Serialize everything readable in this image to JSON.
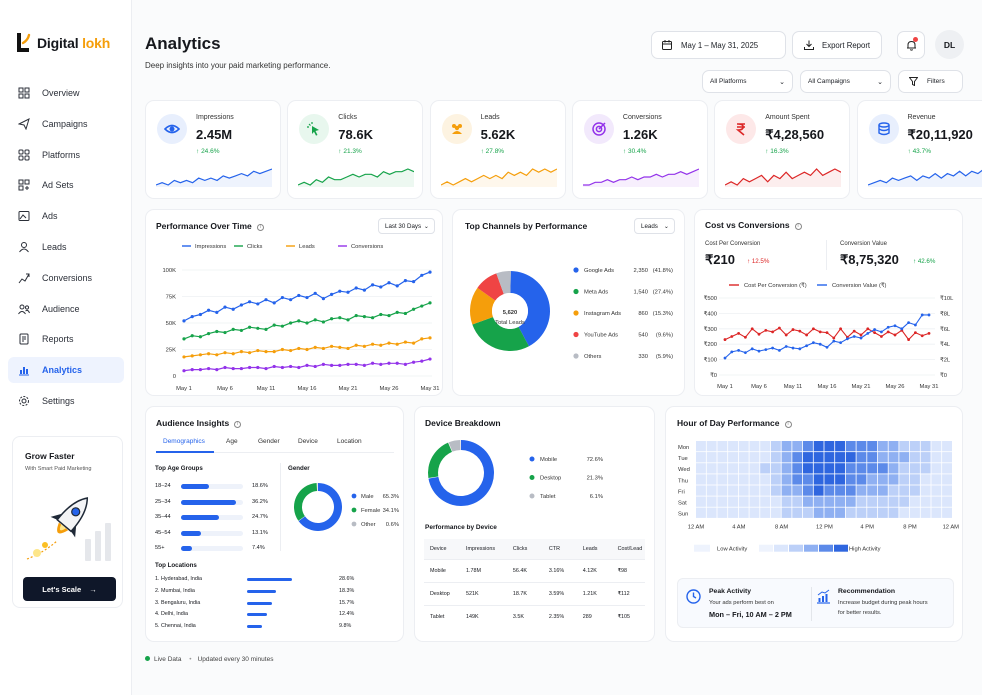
{
  "brand": {
    "name_a": "Digital ",
    "name_b": "lokh"
  },
  "nav": [
    "Overview",
    "Campaigns",
    "Platforms",
    "Ad Sets",
    "Ads",
    "Leads",
    "Conversions",
    "Audience",
    "Reports",
    "Analytics",
    "Settings"
  ],
  "nav_icons": [
    "overview-icon",
    "campaigns-icon",
    "platforms-icon",
    "ad-sets-icon",
    "ads-icon",
    "leads-icon",
    "conversions-icon",
    "audience-icon",
    "reports-icon",
    "analytics-icon",
    "settings-icon"
  ],
  "promo": {
    "title": "Grow Faster",
    "subtitle": "With Smart Paid Marketing",
    "button": "Let's Scale"
  },
  "header": {
    "title": "Analytics",
    "subtitle": "Deep insights into your paid marketing performance.",
    "date_range": "May 1 – May 31, 2025",
    "export": "Export Report",
    "avatar": "DL",
    "platforms": "All Platforms",
    "campaigns": "All Campaigns",
    "filters": "Filters"
  },
  "kpis": [
    {
      "label": "Impressions",
      "value": "2.45M",
      "change": "24.6%",
      "icon": "eye-icon",
      "color": "#2563eb",
      "bg": "#e8effd",
      "spark": [
        3,
        4,
        3,
        5,
        4,
        5,
        4,
        6,
        5,
        6,
        5,
        7,
        6,
        7,
        8,
        7,
        9,
        8,
        9,
        10
      ]
    },
    {
      "label": "Clicks",
      "value": "78.6K",
      "change": "21.3%",
      "icon": "cursor-click-icon",
      "color": "#16a34a",
      "bg": "#e8f7ee",
      "spark": [
        2,
        3,
        2,
        4,
        3,
        5,
        4,
        4,
        5,
        6,
        5,
        6,
        6,
        5,
        7,
        6,
        7,
        7,
        8,
        7
      ]
    },
    {
      "label": "Leads",
      "value": "5.62K",
      "change": "27.8%",
      "icon": "users-icon",
      "color": "#f59e0b",
      "bg": "#fdf3e1",
      "spark": [
        3,
        4,
        3,
        4,
        5,
        4,
        5,
        6,
        5,
        6,
        5,
        7,
        6,
        7,
        6,
        8,
        7,
        8,
        7,
        8
      ]
    },
    {
      "label": "Conversions",
      "value": "1.26K",
      "change": "30.4%",
      "icon": "target-icon",
      "color": "#9333ea",
      "bg": "#f2e9fc",
      "spark": [
        3,
        3,
        4,
        4,
        5,
        4,
        5,
        5,
        6,
        5,
        6,
        6,
        7,
        6,
        7,
        7,
        8,
        7,
        8,
        9
      ]
    },
    {
      "label": "Amount Spent",
      "value": "₹4,28,560",
      "change": "16.3%",
      "icon": "rupee-icon",
      "color": "#dc2626",
      "bg": "#fde8e8",
      "spark": [
        3,
        4,
        3,
        5,
        4,
        5,
        6,
        4,
        6,
        5,
        7,
        5,
        6,
        7,
        6,
        8,
        6,
        7,
        8,
        7
      ]
    },
    {
      "label": "Revenue",
      "value": "₹20,11,920",
      "change": "43.7%",
      "icon": "database-icon",
      "color": "#2563eb",
      "bg": "#e8effd",
      "spark": [
        2,
        3,
        4,
        3,
        5,
        4,
        5,
        6,
        4,
        6,
        5,
        7,
        5,
        7,
        6,
        8,
        6,
        8,
        7,
        9
      ]
    }
  ],
  "performance": {
    "title": "Performance Over Time",
    "range": "Last 30 Days",
    "legend": [
      "Impressions",
      "Clicks",
      "Leads",
      "Conversions"
    ],
    "colors": [
      "#2563eb",
      "#16a34a",
      "#f59e0b",
      "#9333ea"
    ],
    "yticks": [
      "100K",
      "75K",
      "50K",
      "25K",
      "0"
    ],
    "xticks": [
      "May 1",
      "May 6",
      "May 11",
      "May 16",
      "May 21",
      "May 26",
      "May 31"
    ],
    "chart_data": {
      "type": "line",
      "ylim": [
        0,
        100000
      ],
      "x": [
        "May 1",
        "May 2",
        "May 3",
        "May 4",
        "May 5",
        "May 6",
        "May 7",
        "May 8",
        "May 9",
        "May 10",
        "May 11",
        "May 12",
        "May 13",
        "May 14",
        "May 15",
        "May 16",
        "May 17",
        "May 18",
        "May 19",
        "May 20",
        "May 21",
        "May 22",
        "May 23",
        "May 24",
        "May 25",
        "May 26",
        "May 27",
        "May 28",
        "May 29",
        "May 30",
        "May 31"
      ],
      "series": [
        {
          "name": "Impressions",
          "values": [
            52000,
            56000,
            58000,
            62000,
            60000,
            65000,
            63000,
            67000,
            70000,
            68000,
            72000,
            69000,
            74000,
            72000,
            76000,
            74000,
            78000,
            73000,
            77000,
            80000,
            79000,
            83000,
            81000,
            86000,
            84000,
            88000,
            85000,
            90000,
            89000,
            95000,
            98000
          ]
        },
        {
          "name": "Clicks",
          "values": [
            35000,
            38000,
            37000,
            40000,
            42000,
            41000,
            44000,
            43000,
            46000,
            45000,
            44000,
            48000,
            47000,
            50000,
            52000,
            50000,
            53000,
            51000,
            54000,
            55000,
            53000,
            57000,
            56000,
            55000,
            58000,
            57000,
            60000,
            59000,
            63000,
            66000,
            69000
          ]
        },
        {
          "name": "Leads",
          "values": [
            18000,
            19000,
            20000,
            21000,
            20000,
            22000,
            21000,
            23000,
            22000,
            24000,
            23000,
            23000,
            25000,
            24000,
            26000,
            25000,
            27000,
            26000,
            28000,
            27000,
            26000,
            29000,
            28000,
            30000,
            29000,
            31000,
            30000,
            32000,
            31000,
            35000,
            36000
          ]
        },
        {
          "name": "Conversions",
          "values": [
            5000,
            6000,
            6000,
            7000,
            6000,
            8000,
            7000,
            7000,
            8000,
            8000,
            7000,
            9000,
            8000,
            9000,
            8000,
            10000,
            9000,
            11000,
            10000,
            10000,
            11000,
            11000,
            10000,
            12000,
            11000,
            12000,
            12000,
            11000,
            13000,
            14000,
            16000
          ]
        }
      ]
    }
  },
  "channels": {
    "title": "Top Channels by Performance",
    "metric": "Leads",
    "total": "5,620",
    "total_label": "Total Leads",
    "chart_data": {
      "type": "pie",
      "labels": [
        "Google Ads",
        "Meta Ads",
        "Instagram Ads",
        "YouTube Ads",
        "Others"
      ],
      "values": [
        2350,
        1540,
        860,
        540,
        330
      ],
      "percents": [
        "(41.8%)",
        "(27.4%)",
        "(15.3%)",
        "(9.6%)",
        "(5.9%)"
      ],
      "colors": [
        "#2563eb",
        "#16a34a",
        "#f59e0b",
        "#ef4444",
        "#b8bcc4"
      ]
    },
    "values_display": [
      "2,350",
      "1,540",
      "860",
      "540",
      "330"
    ]
  },
  "cost": {
    "title": "Cost vs Conversions",
    "cpc_label": "Cost Per Conversion",
    "cpc_value": "₹210",
    "cpc_change": "12.5%",
    "cv_label": "Conversion Value",
    "cv_value": "₹8,75,320",
    "cv_change": "42.6%",
    "legend": [
      "Cost Per Conversion (₹)",
      "Conversion Value (₹)"
    ],
    "colors": [
      "#dc2626",
      "#2563eb"
    ],
    "yleft": [
      "₹500",
      "₹400",
      "₹300",
      "₹200",
      "₹100",
      "₹0"
    ],
    "yright": [
      "₹10L",
      "₹8L",
      "₹6L",
      "₹4L",
      "₹2L",
      "₹0"
    ],
    "xticks": [
      "May 1",
      "May 6",
      "May 11",
      "May 16",
      "May 21",
      "May 26",
      "May 31"
    ],
    "chart_data": {
      "type": "line",
      "series": [
        {
          "name": "Cost Per Conversion (₹)",
          "ylim": [
            0,
            500
          ],
          "values": [
            230,
            250,
            270,
            245,
            300,
            265,
            290,
            280,
            305,
            260,
            295,
            285,
            260,
            300,
            280,
            275,
            240,
            300,
            245,
            285,
            260,
            300,
            275,
            250,
            280,
            260,
            290,
            230,
            275,
            255,
            270
          ]
        },
        {
          "name": "Conversion Value (₹)",
          "ylim": [
            0,
            1000000
          ],
          "values": [
            220000,
            300000,
            320000,
            290000,
            340000,
            310000,
            330000,
            350000,
            320000,
            370000,
            350000,
            340000,
            380000,
            420000,
            400000,
            360000,
            440000,
            420000,
            470000,
            500000,
            480000,
            540000,
            590000,
            560000,
            620000,
            640000,
            600000,
            680000,
            650000,
            780000,
            780000
          ]
        }
      ]
    }
  },
  "audience": {
    "title": "Audience Insights",
    "tabs": [
      "Demographics",
      "Age",
      "Gender",
      "Device",
      "Location"
    ],
    "age_title": "Top Age Groups",
    "ages": [
      {
        "label": "18–24",
        "pct": "18.6%",
        "v": 18.6
      },
      {
        "label": "25–34",
        "pct": "36.2%",
        "v": 36.2
      },
      {
        "label": "35–44",
        "pct": "24.7%",
        "v": 24.7
      },
      {
        "label": "45–54",
        "pct": "13.1%",
        "v": 13.1
      },
      {
        "label": "55+",
        "pct": "7.4%",
        "v": 7.4
      }
    ],
    "gender_title": "Gender",
    "genders": [
      {
        "label": "Male",
        "pct": "65.3%",
        "v": 65.3,
        "color": "#2563eb"
      },
      {
        "label": "Female",
        "pct": "34.1%",
        "v": 34.1,
        "color": "#16a34a"
      },
      {
        "label": "Other",
        "pct": "0.6%",
        "v": 0.6,
        "color": "#b8bcc4"
      }
    ],
    "loc_title": "Top Locations",
    "locations": [
      {
        "label": "1. Hyderabad, India",
        "pct": "28.6%",
        "v": 28.6
      },
      {
        "label": "2. Mumbai, India",
        "pct": "18.3%",
        "v": 18.3
      },
      {
        "label": "3. Bengaluru, India",
        "pct": "15.7%",
        "v": 15.7
      },
      {
        "label": "4. Delhi, India",
        "pct": "12.4%",
        "v": 12.4
      },
      {
        "label": "5. Chennai, India",
        "pct": "9.8%",
        "v": 9.8
      }
    ]
  },
  "device": {
    "title": "Device Breakdown",
    "items": [
      {
        "label": "Mobile",
        "pct": "72.6%",
        "v": 72.6,
        "color": "#2563eb"
      },
      {
        "label": "Desktop",
        "pct": "21.3%",
        "v": 21.3,
        "color": "#16a34a"
      },
      {
        "label": "Tablet",
        "pct": "6.1%",
        "v": 6.1,
        "color": "#b8bcc4"
      }
    ],
    "table_title": "Performance by Device",
    "cols": [
      "Device",
      "Impressions",
      "Clicks",
      "CTR",
      "Leads",
      "Cost/Lead"
    ],
    "rows": [
      [
        "Mobile",
        "1.78M",
        "56.4K",
        "3.16%",
        "4.12K",
        "₹98"
      ],
      [
        "Desktop",
        "521K",
        "18.7K",
        "3.59%",
        "1.21K",
        "₹112"
      ],
      [
        "Tablet",
        "149K",
        "3.5K",
        "2.35%",
        "289",
        "₹105"
      ]
    ]
  },
  "hour": {
    "title": "Hour of Day Performance",
    "days": [
      "Mon",
      "Tue",
      "Wed",
      "Thu",
      "Fri",
      "Sat",
      "Sun"
    ],
    "xticks": [
      "12 AM",
      "4 AM",
      "8 AM",
      "12 PM",
      "4 PM",
      "8 PM",
      "12 AM"
    ],
    "low": "Low Activity",
    "high": "High Activity",
    "peak_title": "Peak Activity",
    "peak_sub": "Your ads perform best on",
    "peak_value": "Mon – Fri, 10 AM – 2 PM",
    "rec_title": "Recommendation",
    "rec_sub1": "Increase budget during peak hours",
    "rec_sub2": "for better results.",
    "chart_data": {
      "type": "heatmap",
      "scale": [
        0,
        5
      ],
      "rows": [
        [
          1,
          1,
          1,
          1,
          1,
          1,
          1,
          2,
          3,
          3,
          4,
          5,
          5,
          5,
          4,
          4,
          4,
          3,
          3,
          2,
          2,
          2,
          1,
          1
        ],
        [
          1,
          1,
          1,
          1,
          1,
          1,
          1,
          2,
          3,
          4,
          5,
          5,
          5,
          5,
          5,
          4,
          4,
          3,
          3,
          3,
          2,
          2,
          1,
          1
        ],
        [
          1,
          1,
          1,
          1,
          1,
          1,
          2,
          2,
          3,
          4,
          5,
          5,
          5,
          5,
          4,
          4,
          4,
          4,
          3,
          2,
          2,
          2,
          1,
          1
        ],
        [
          1,
          1,
          1,
          1,
          1,
          1,
          1,
          2,
          3,
          4,
          4,
          5,
          5,
          5,
          4,
          4,
          3,
          3,
          3,
          2,
          2,
          1,
          1,
          1
        ],
        [
          1,
          1,
          1,
          1,
          1,
          1,
          1,
          2,
          3,
          3,
          4,
          5,
          4,
          4,
          4,
          3,
          3,
          3,
          2,
          2,
          2,
          1,
          1,
          1
        ],
        [
          1,
          1,
          1,
          1,
          1,
          1,
          1,
          1,
          2,
          2,
          3,
          3,
          3,
          3,
          3,
          2,
          2,
          2,
          2,
          2,
          1,
          1,
          1,
          1
        ],
        [
          1,
          1,
          1,
          1,
          1,
          1,
          1,
          1,
          2,
          2,
          2,
          3,
          3,
          3,
          2,
          2,
          2,
          2,
          2,
          1,
          1,
          1,
          1,
          1
        ]
      ]
    }
  },
  "footer": {
    "live": "Live Data",
    "updated": "Updated every 30 minutes"
  }
}
